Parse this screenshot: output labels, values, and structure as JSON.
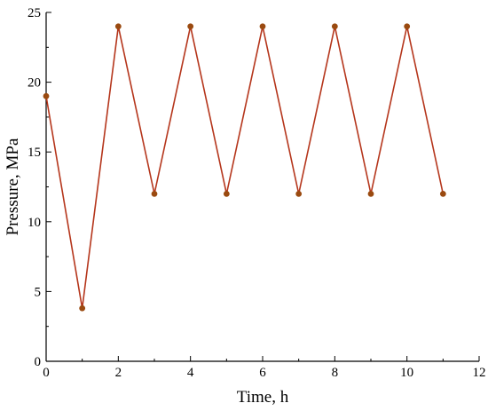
{
  "chart_data": {
    "type": "line",
    "title": "",
    "xlabel": "Time, h",
    "ylabel": "Pressure, MPa",
    "xlim": [
      0,
      12
    ],
    "ylim": [
      0,
      25
    ],
    "xticks": [
      0,
      2,
      4,
      6,
      8,
      10,
      12
    ],
    "yticks": [
      0,
      5,
      10,
      15,
      20,
      25
    ],
    "grid": false,
    "series": [
      {
        "x": [
          0,
          1,
          2,
          3,
          4,
          5,
          6,
          7,
          8,
          9,
          10,
          11
        ],
        "y": [
          19,
          3.8,
          24,
          12,
          24,
          12,
          24,
          12,
          24,
          12,
          24,
          12
        ],
        "color": "#b5361c",
        "marker_color": "#9a4a10"
      }
    ]
  }
}
